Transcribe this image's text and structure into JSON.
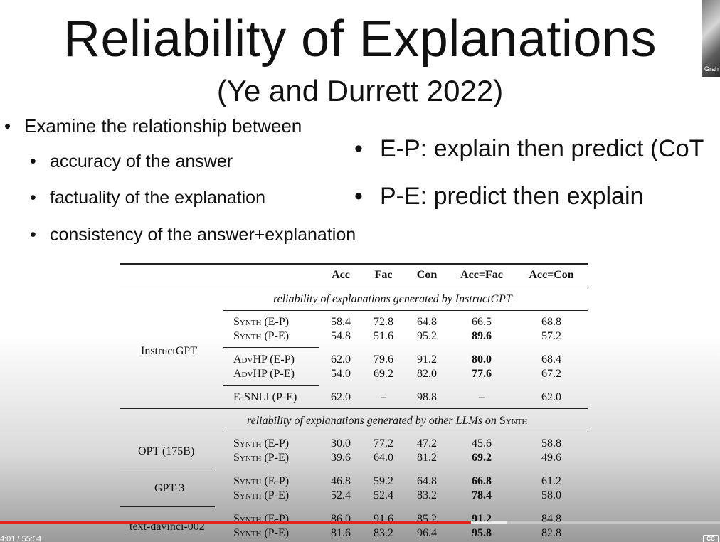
{
  "slide": {
    "title": "Reliability of Explanations",
    "subtitle": "(Ye and Durrett 2022)",
    "bullet_main": "Examine the relationship between",
    "sub_bullets": [
      "accuracy of the answer",
      "factuality of the explanation",
      "consistency of the answer+explanation"
    ],
    "right_bullets": [
      "E-P: explain then predict (CoT",
      "P-E: predict then explain"
    ],
    "bullet_glyph": "•"
  },
  "webcam": {
    "label": "Grah"
  },
  "table": {
    "headers": [
      "Acc",
      "Fac",
      "Con",
      "Acc=Fac",
      "Acc=Con"
    ],
    "section1": "reliability of explanations generated by InstructGPT",
    "section2_prefix": "reliability of explanations generated by other LLMs on ",
    "section2_suffix": "Synth",
    "models": [
      "InstructGPT",
      "OPT (175B)",
      "GPT-3",
      "text-davinci-002"
    ],
    "rows": [
      {
        "setting": "Synth (E-P)",
        "vals": [
          "58.4",
          "72.8",
          "64.8",
          "66.5",
          "68.8"
        ],
        "bold": [
          false,
          false,
          false,
          false,
          false
        ]
      },
      {
        "setting": "Synth (P-E)",
        "vals": [
          "54.8",
          "51.6",
          "95.2",
          "89.6",
          "57.2"
        ],
        "bold": [
          false,
          false,
          false,
          true,
          false
        ]
      },
      {
        "setting": "AdvHP (E-P)",
        "vals": [
          "62.0",
          "79.6",
          "91.2",
          "80.0",
          "68.4"
        ],
        "bold": [
          false,
          false,
          false,
          true,
          false
        ]
      },
      {
        "setting": "AdvHP (P-E)",
        "vals": [
          "54.0",
          "69.2",
          "82.0",
          "77.6",
          "67.2"
        ],
        "bold": [
          false,
          false,
          false,
          true,
          false
        ]
      },
      {
        "setting": "E-SNLI (P-E)",
        "vals": [
          "62.0",
          "–",
          "98.8",
          "–",
          "62.0"
        ],
        "bold": [
          false,
          false,
          false,
          false,
          false
        ]
      },
      {
        "setting": "Synth (E-P)",
        "vals": [
          "30.0",
          "77.2",
          "47.2",
          "45.6",
          "58.8"
        ],
        "bold": [
          false,
          false,
          false,
          false,
          false
        ]
      },
      {
        "setting": "Synth (P-E)",
        "vals": [
          "39.6",
          "64.0",
          "81.2",
          "69.2",
          "49.6"
        ],
        "bold": [
          false,
          false,
          false,
          true,
          false
        ]
      },
      {
        "setting": "Synth (E-P)",
        "vals": [
          "46.8",
          "59.2",
          "64.8",
          "66.8",
          "61.2"
        ],
        "bold": [
          false,
          false,
          false,
          true,
          false
        ]
      },
      {
        "setting": "Synth (P-E)",
        "vals": [
          "52.4",
          "52.4",
          "83.2",
          "78.4",
          "58.0"
        ],
        "bold": [
          false,
          false,
          false,
          true,
          false
        ]
      },
      {
        "setting": "Synth (E-P)",
        "vals": [
          "86.0",
          "91.6",
          "85.2",
          "91.2",
          "84.8"
        ],
        "bold": [
          false,
          false,
          false,
          true,
          false
        ]
      },
      {
        "setting": "Synth (P-E)",
        "vals": [
          "81.6",
          "83.2",
          "96.4",
          "95.8",
          "82.8"
        ],
        "bold": [
          false,
          false,
          false,
          true,
          false
        ]
      }
    ]
  },
  "player": {
    "timecode": "4:01 / 55:54",
    "progress": 0.654,
    "buffered": 0.705,
    "cc_label": "CC",
    "colors": {
      "progress": "#e62117"
    }
  }
}
